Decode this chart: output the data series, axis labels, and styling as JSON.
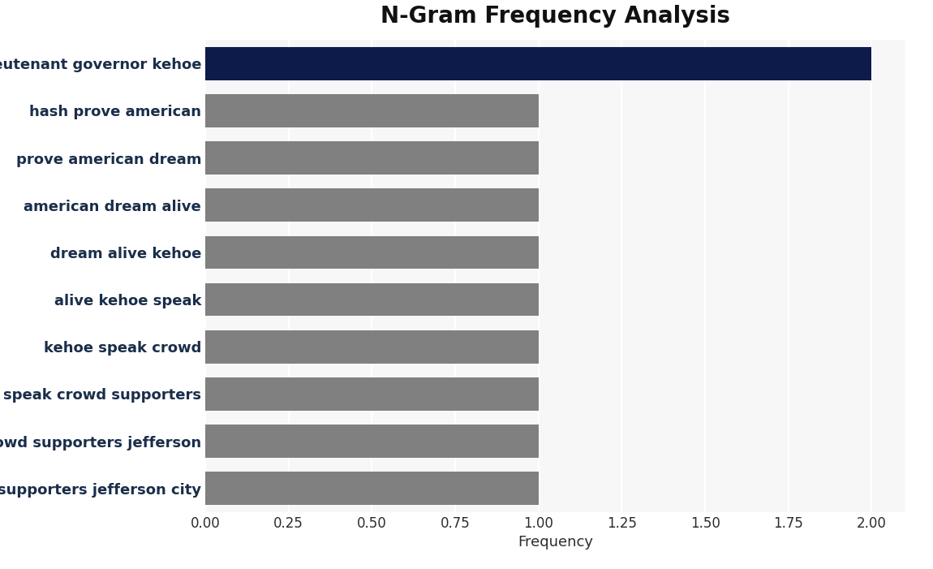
{
  "title": "N-Gram Frequency Analysis",
  "xlabel": "Frequency",
  "categories": [
    "supporters jefferson city",
    "crowd supporters jefferson",
    "speak crowd supporters",
    "kehoe speak crowd",
    "alive kehoe speak",
    "dream alive kehoe",
    "american dream alive",
    "prove american dream",
    "hash prove american",
    "lieutenant governor kehoe"
  ],
  "values": [
    1,
    1,
    1,
    1,
    1,
    1,
    1,
    1,
    1,
    2
  ],
  "bar_colors": [
    "#808080",
    "#808080",
    "#808080",
    "#808080",
    "#808080",
    "#808080",
    "#808080",
    "#808080",
    "#808080",
    "#0d1b4b"
  ],
  "xlim": [
    0,
    2.1
  ],
  "xticks": [
    0.0,
    0.25,
    0.5,
    0.75,
    1.0,
    1.25,
    1.5,
    1.75,
    2.0
  ],
  "xtick_labels": [
    "0.00",
    "0.25",
    "0.50",
    "0.75",
    "1.00",
    "1.25",
    "1.50",
    "1.75",
    "2.00"
  ],
  "fig_background_color": "#ffffff",
  "plot_background_color": "#f7f7f7",
  "title_fontsize": 20,
  "label_fontsize": 13,
  "tick_fontsize": 12,
  "bar_height": 0.7,
  "grid_color": "#ffffff",
  "text_color": "#2c2c2c",
  "label_color": "#1a2e4a"
}
